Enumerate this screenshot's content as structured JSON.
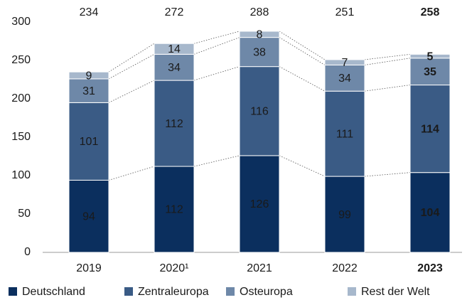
{
  "chart_data": {
    "type": "stacked_bar",
    "categories": [
      "2019",
      "2020¹",
      "2021",
      "2022",
      "2023"
    ],
    "series": [
      {
        "name": "Deutschland",
        "color": "#0b2f5e",
        "values": [
          94,
          112,
          126,
          99,
          104
        ]
      },
      {
        "name": "Zentraleuropa",
        "color": "#3a5b85",
        "values": [
          101,
          112,
          116,
          111,
          114
        ]
      },
      {
        "name": "Osteuropa",
        "color": "#6e88a8",
        "values": [
          31,
          34,
          38,
          34,
          35
        ]
      },
      {
        "name": "Rest der Welt",
        "color": "#a7b8cc",
        "values": [
          9,
          14,
          8,
          7,
          5
        ]
      }
    ],
    "totals": [
      234,
      272,
      288,
      251,
      258
    ],
    "highlight_category": 4,
    "ylim": [
      0,
      300
    ],
    "yticks": [
      0,
      50,
      100,
      150,
      200,
      250,
      300
    ],
    "grid": false,
    "legend": "bottom"
  }
}
